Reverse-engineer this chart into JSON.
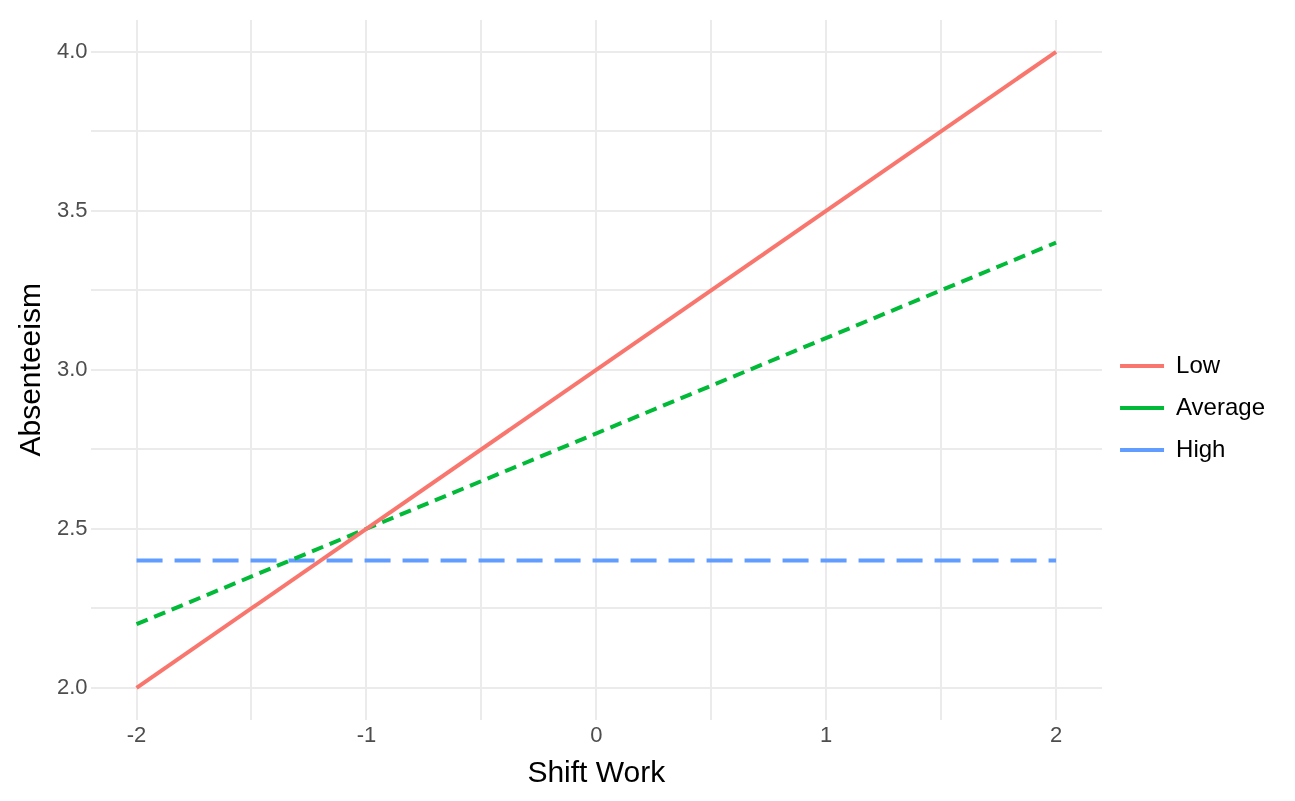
{
  "chart_data": {
    "type": "line",
    "xlabel": "Shift Work",
    "ylabel": "Absenteeism",
    "xlim": [
      -2.2,
      2.2
    ],
    "ylim": [
      1.9,
      4.1
    ],
    "xticks": [
      {
        "value": -2,
        "label": "-2"
      },
      {
        "value": -1.5,
        "label": null
      },
      {
        "value": -1,
        "label": "-1"
      },
      {
        "value": -0.5,
        "label": null
      },
      0,
      {
        "value": 0.5,
        "label": null
      },
      1,
      {
        "value": 1.5,
        "label": null
      },
      2
    ],
    "yticks": [
      {
        "value": 2,
        "label": "2.0"
      },
      {
        "value": 2.25,
        "label": null
      },
      2.5,
      {
        "value": 2.75,
        "label": null
      },
      {
        "value": 3,
        "label": "3.0"
      },
      {
        "value": 3.25,
        "label": null
      },
      3.5,
      {
        "value": 3.75,
        "label": null
      },
      {
        "value": 4,
        "label": "4.0"
      }
    ],
    "grid": true,
    "legend": "right",
    "marker": "none",
    "x": [
      -2,
      2
    ],
    "series": [
      {
        "name": "Low",
        "color": "#f8766d",
        "line_style": "solid",
        "values": [
          2.0,
          4.0
        ]
      },
      {
        "name": "Average",
        "color": "#00ba38",
        "line_style": "dashed",
        "values": [
          2.2,
          3.4
        ]
      },
      {
        "name": "High",
        "color": "#619cff",
        "line_style": "longdash",
        "values": [
          2.4,
          2.4
        ]
      }
    ]
  }
}
